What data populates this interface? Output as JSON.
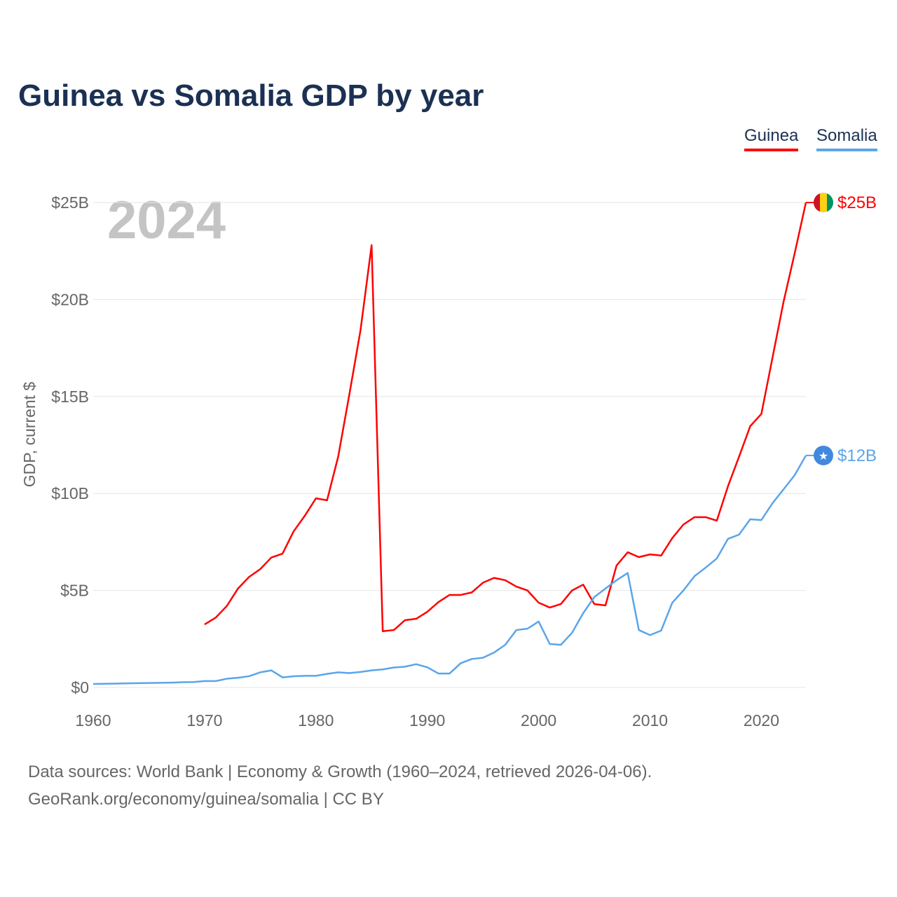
{
  "title": "Guinea vs Somalia GDP by year",
  "legend": [
    {
      "label": "Guinea",
      "color": "#ff0000"
    },
    {
      "label": "Somalia",
      "color": "#5aa5ea"
    }
  ],
  "year_label": "2024",
  "source_line1": "Data sources: World Bank | Economy & Growth (1960–2024, retrieved 2026-04-06).",
  "source_line2": "GeoRank.org/economy/guinea/somalia | CC BY",
  "chart_data": {
    "type": "line",
    "title": "Guinea vs Somalia GDP by year",
    "xlabel": "",
    "ylabel": "GDP, current $",
    "xlim": [
      1960,
      2024
    ],
    "ylim": [
      0,
      25
    ],
    "unit": "billion USD",
    "grid": true,
    "legend_position": "top-right",
    "xticks": [
      1960,
      1970,
      1980,
      1990,
      2000,
      2010,
      2020
    ],
    "xtick_labels": [
      "1960",
      "1970",
      "1980",
      "1990",
      "2000",
      "2010",
      "2020"
    ],
    "yticks": [
      0,
      5,
      10,
      15,
      20,
      25
    ],
    "ytick_labels": [
      "$0",
      "$5B",
      "$10B",
      "$15B",
      "$20B",
      "$25B"
    ],
    "series": [
      {
        "name": "Guinea",
        "color": "#ff0000",
        "end_label": "$25B",
        "start_year": 1970,
        "values": [
          3.25,
          3.6,
          4.2,
          5.1,
          5.7,
          6.1,
          6.7,
          6.9,
          8.05,
          8.85,
          9.75,
          9.65,
          11.9,
          15.1,
          18.4,
          22.8,
          2.9,
          2.96,
          3.47,
          3.54,
          3.9,
          4.4,
          4.77,
          4.77,
          4.9,
          5.4,
          5.65,
          5.53,
          5.2,
          5.0,
          4.37,
          4.12,
          4.3,
          5.0,
          5.3,
          4.3,
          4.23,
          6.29,
          6.97,
          6.72,
          6.86,
          6.8,
          7.7,
          8.4,
          8.78,
          8.78,
          8.6,
          10.37,
          11.9,
          13.47,
          14.1,
          17.0,
          19.9,
          22.4,
          25.0
        ]
      },
      {
        "name": "Somalia",
        "color": "#5aa5ea",
        "end_label": "$12B",
        "start_year": 1960,
        "values": [
          0.18,
          0.19,
          0.2,
          0.21,
          0.22,
          0.23,
          0.24,
          0.25,
          0.27,
          0.28,
          0.33,
          0.33,
          0.45,
          0.5,
          0.58,
          0.78,
          0.88,
          0.52,
          0.58,
          0.6,
          0.6,
          0.7,
          0.78,
          0.74,
          0.8,
          0.88,
          0.93,
          1.03,
          1.07,
          1.2,
          1.04,
          0.72,
          0.72,
          1.25,
          1.47,
          1.53,
          1.8,
          2.2,
          2.96,
          3.03,
          3.4,
          2.24,
          2.2,
          2.82,
          3.83,
          4.66,
          5.1,
          5.53,
          5.9,
          2.96,
          2.7,
          2.93,
          4.37,
          5.0,
          5.74,
          6.18,
          6.65,
          7.66,
          7.88,
          8.67,
          8.63,
          9.5,
          10.22,
          10.95,
          11.96
        ]
      }
    ]
  }
}
